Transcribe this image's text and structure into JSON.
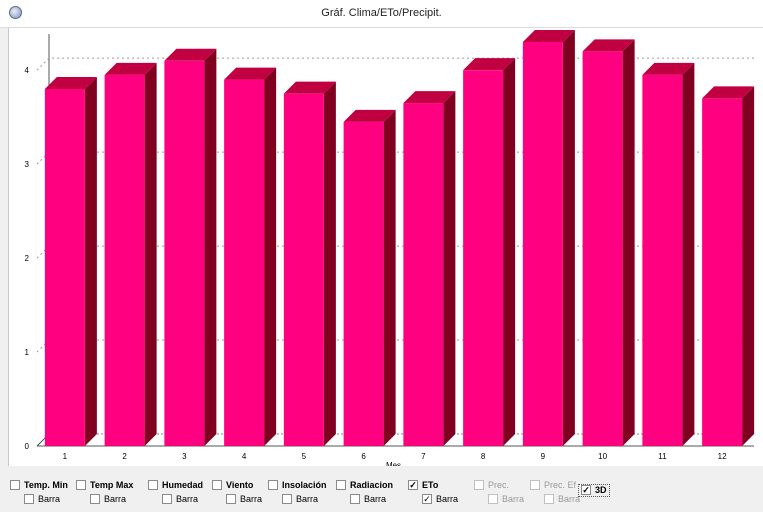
{
  "window": {
    "title": "Gráf. Clima/ETo/Precipit."
  },
  "chart_data": {
    "type": "bar",
    "style": "3d",
    "xlabel": "Mes",
    "ylabel": "",
    "categories": [
      "1",
      "2",
      "3",
      "4",
      "5",
      "6",
      "7",
      "8",
      "9",
      "10",
      "11",
      "12"
    ],
    "series": [
      {
        "name": "ETo",
        "values": [
          3.8,
          3.95,
          4.1,
          3.9,
          3.75,
          3.45,
          3.65,
          4.0,
          4.3,
          4.2,
          3.95,
          3.7
        ]
      }
    ],
    "yticks": [
      0,
      1,
      2,
      3,
      4
    ],
    "ylim": [
      0,
      4.3
    ],
    "bar_color": "#ff0080",
    "bar_top_color": "#c00040",
    "bar_side_color": "#800020",
    "grid": "horizontal dashed"
  },
  "legend": [
    {
      "label": "Temp. Min",
      "checked": false,
      "bar_label": "Barra",
      "bar_checked": false,
      "enabled": true
    },
    {
      "label": "Temp Max",
      "checked": false,
      "bar_label": "Barra",
      "bar_checked": false,
      "enabled": true
    },
    {
      "label": "Humedad",
      "checked": false,
      "bar_label": "Barra",
      "bar_checked": false,
      "enabled": true
    },
    {
      "label": "Viento",
      "checked": false,
      "bar_label": "Barra",
      "bar_checked": false,
      "enabled": true
    },
    {
      "label": "Insolación",
      "checked": false,
      "bar_label": "Barra",
      "bar_checked": false,
      "enabled": true
    },
    {
      "label": "Radiacion",
      "checked": false,
      "bar_label": "Barra",
      "bar_checked": false,
      "enabled": true
    },
    {
      "label": "ETo",
      "checked": true,
      "bar_label": "Barra",
      "bar_checked": true,
      "enabled": true
    },
    {
      "label": "Prec.",
      "checked": false,
      "bar_label": "Barra",
      "bar_checked": false,
      "enabled": false
    },
    {
      "label": "Prec. Ef",
      "checked": false,
      "bar_label": "Barra",
      "bar_checked": false,
      "enabled": false
    }
  ],
  "toggle_3d": {
    "label": "3D",
    "checked": true
  },
  "icons": {
    "window": "app-window-icon"
  }
}
